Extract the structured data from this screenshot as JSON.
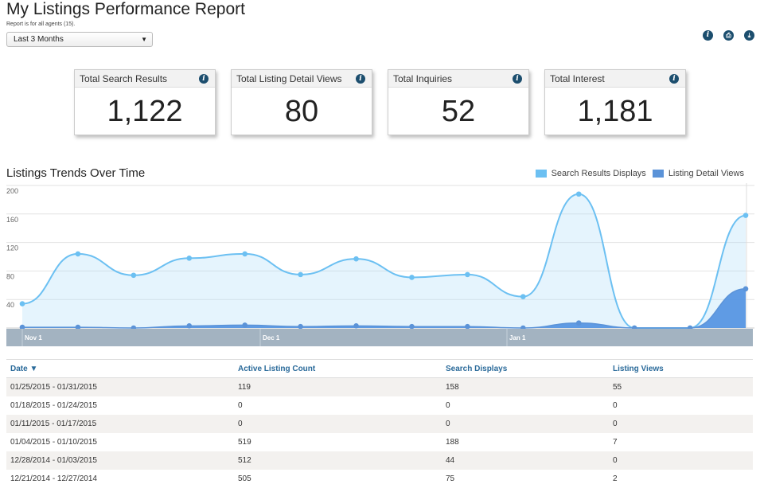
{
  "header": {
    "title": "My Listings Performance Report",
    "subtitle": "Report is for all agents (15).",
    "period": "Last 3 Months"
  },
  "icons": {
    "info": "i",
    "print": "⎙",
    "download": "⤓"
  },
  "stats": [
    {
      "label": "Total Search Results",
      "value": "1,122"
    },
    {
      "label": "Total Listing Detail Views",
      "value": "80"
    },
    {
      "label": "Total Inquiries",
      "value": "52"
    },
    {
      "label": "Total Interest",
      "value": "1,181"
    }
  ],
  "chart_title": "Listings Trends Over Time",
  "chart_data": {
    "type": "area",
    "ylim": [
      0,
      200
    ],
    "y_ticks": [
      "200",
      "160",
      "120",
      "80",
      "40"
    ],
    "x_labels": [
      "Nov 1",
      "Dec 1",
      "Jan 1"
    ],
    "series": [
      {
        "name": "Search Results Displays",
        "color": "#6cc0f2",
        "values": [
          34,
          104,
          74,
          98,
          104,
          75,
          97,
          71,
          75,
          44,
          188,
          0,
          0,
          158
        ]
      },
      {
        "name": "Listing Detail Views",
        "color": "#5b93d8",
        "values": [
          1,
          1,
          0,
          3,
          4,
          2,
          3,
          2,
          2,
          0,
          7,
          0,
          0,
          55
        ]
      }
    ]
  },
  "table": {
    "headers": [
      "Date ▼",
      "Active Listing Count",
      "Search Displays",
      "Listing Views"
    ],
    "rows": [
      [
        "01/25/2015 - 01/31/2015",
        "119",
        "158",
        "55"
      ],
      [
        "01/18/2015 - 01/24/2015",
        "0",
        "0",
        "0"
      ],
      [
        "01/11/2015 - 01/17/2015",
        "0",
        "0",
        "0"
      ],
      [
        "01/04/2015 - 01/10/2015",
        "519",
        "188",
        "7"
      ],
      [
        "12/28/2014 - 01/03/2015",
        "512",
        "44",
        "0"
      ],
      [
        "12/21/2014 - 12/27/2014",
        "505",
        "75",
        "2"
      ]
    ]
  }
}
